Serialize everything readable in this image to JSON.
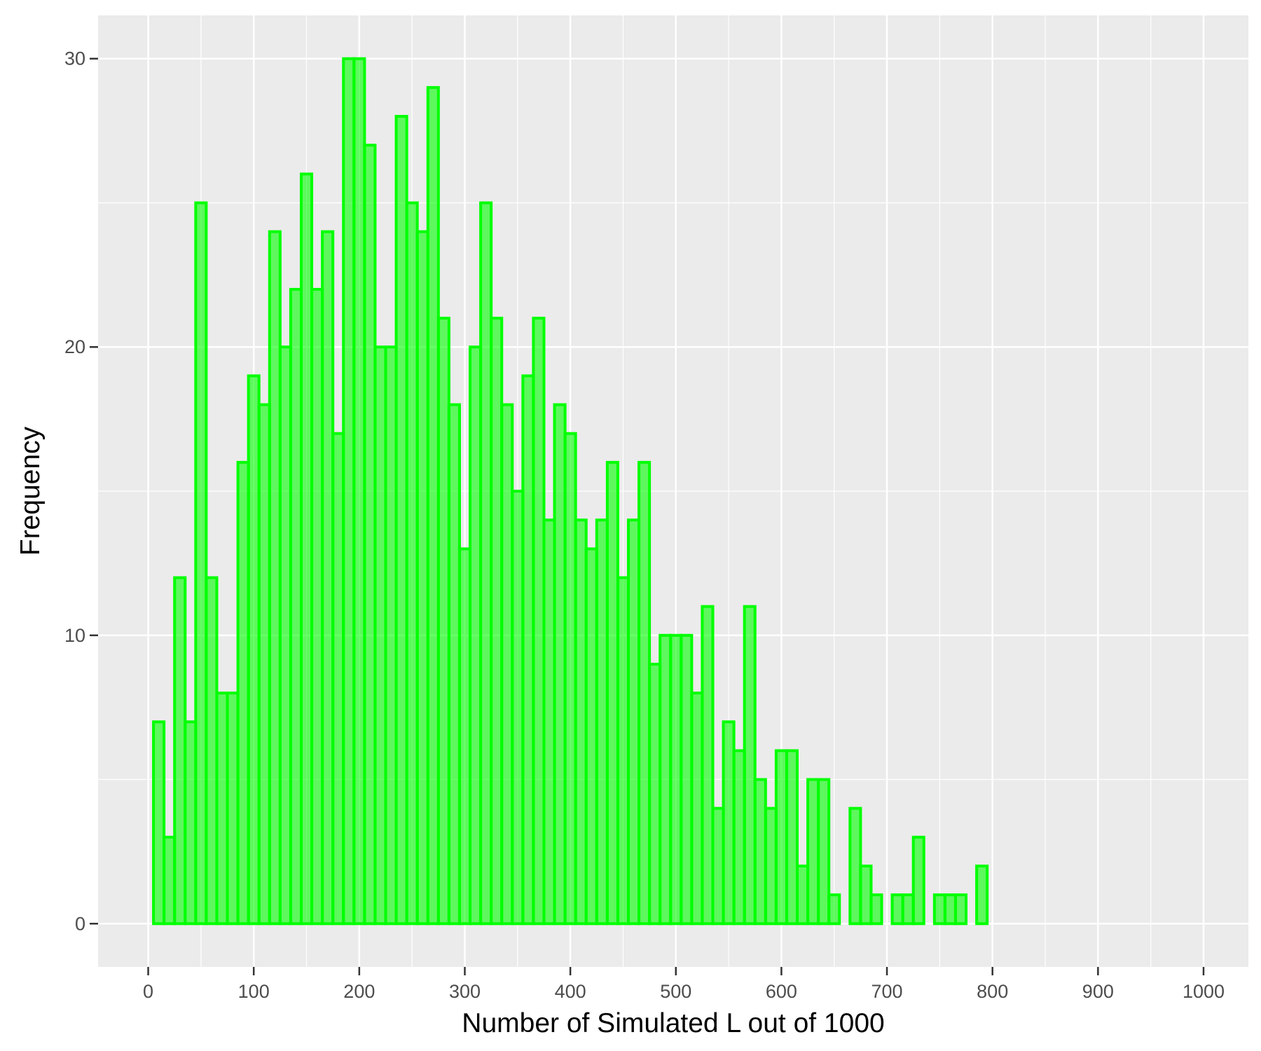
{
  "chart_data": {
    "type": "bar",
    "title": "",
    "xlabel": "Number of Simulated L out of 1000",
    "ylabel": "Frequency",
    "xlim": [
      -47.5,
      1042.5
    ],
    "ylim": [
      -1.5,
      31.5
    ],
    "x_ticks": [
      "0",
      "100",
      "200",
      "300",
      "400",
      "500",
      "600",
      "700",
      "800",
      "900",
      "1000"
    ],
    "y_ticks": [
      "0",
      "10",
      "20",
      "30"
    ],
    "bin_width": 10,
    "bins_start": [
      5,
      15,
      25,
      35,
      45,
      55,
      65,
      75,
      85,
      95,
      105,
      115,
      125,
      135,
      145,
      155,
      165,
      175,
      185,
      195,
      205,
      215,
      225,
      235,
      245,
      255,
      265,
      275,
      285,
      295,
      305,
      315,
      325,
      335,
      345,
      355,
      365,
      375,
      385,
      395,
      405,
      415,
      425,
      435,
      445,
      455,
      465,
      475,
      485,
      495,
      505,
      515,
      525,
      535,
      545,
      555,
      565,
      575,
      585,
      595,
      605,
      615,
      625,
      635,
      645,
      655,
      665,
      675,
      685,
      695,
      705,
      715,
      725,
      735,
      745,
      755,
      765,
      775,
      785,
      795,
      805,
      815,
      825,
      835,
      845,
      855,
      865,
      875,
      885,
      895,
      905,
      915,
      925,
      935,
      945,
      955,
      965,
      975,
      985
    ],
    "values": [
      7,
      3,
      12,
      7,
      25,
      12,
      8,
      8,
      16,
      19,
      18,
      24,
      20,
      22,
      26,
      22,
      24,
      17,
      30,
      30,
      27,
      20,
      20,
      28,
      25,
      24,
      29,
      21,
      18,
      13,
      20,
      25,
      21,
      18,
      15,
      19,
      21,
      14,
      18,
      17,
      14,
      13,
      14,
      16,
      12,
      14,
      16,
      9,
      10,
      10,
      10,
      8,
      11,
      4,
      7,
      6,
      11,
      5,
      4,
      6,
      6,
      2,
      5,
      5,
      1,
      0,
      4,
      2,
      1,
      0,
      1,
      1,
      3,
      0,
      1,
      1,
      1,
      0,
      2,
      0,
      0,
      0,
      0,
      0,
      0,
      0,
      0,
      0,
      0,
      0,
      0,
      0,
      0,
      0,
      0,
      0,
      0,
      0,
      0
    ],
    "grid": true,
    "bar_color": "#00ff00",
    "bar_fill": "#00ff00",
    "bar_fill_opacity": 0.6,
    "panel_background": "#ebebeb",
    "grid_color": "#ffffff"
  }
}
